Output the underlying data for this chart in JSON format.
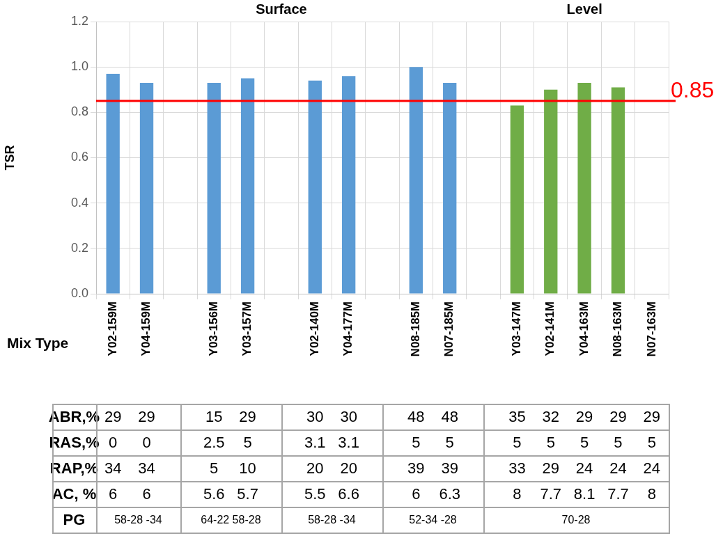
{
  "chart_data": {
    "type": "bar",
    "categories": [
      "Y02-159M",
      "Y04-159M",
      null,
      "Y03-156M",
      "Y03-157M",
      null,
      "Y02-140M",
      "Y04-177M",
      null,
      "N08-185M",
      "N07-185M",
      null,
      "Y03-147M",
      "Y02-141M",
      "Y04-163M",
      "N08-163M",
      "N07-163M"
    ],
    "values": [
      0.97,
      0.93,
      null,
      0.93,
      0.95,
      null,
      0.94,
      0.96,
      null,
      1.0,
      0.93,
      null,
      0.83,
      0.9,
      0.93,
      0.91,
      null
    ],
    "colors": [
      "#5b9bd5",
      "#5b9bd5",
      null,
      "#5b9bd5",
      "#5b9bd5",
      null,
      "#5b9bd5",
      "#5b9bd5",
      null,
      "#5b9bd5",
      "#5b9bd5",
      null,
      "#70ad47",
      "#70ad47",
      "#70ad47",
      "#70ad47",
      null
    ],
    "xlabel": "Mix Type",
    "ylabel": "TSR",
    "ylim": [
      0,
      1.2
    ],
    "yticks": [
      {
        "value": 0,
        "label": "0.0"
      },
      {
        "value": 0.2,
        "label": "0.2"
      },
      {
        "value": 0.4,
        "label": "0.4"
      },
      {
        "value": 0.6,
        "label": "0.6"
      },
      {
        "value": 0.8,
        "label": "0.8"
      },
      {
        "value": 1,
        "label": "1.0"
      },
      {
        "value": 1.2,
        "label": "1.2"
      }
    ],
    "grid": true,
    "legend": false,
    "ref_lines": [
      {
        "axis": "y",
        "value": 0.85,
        "label": "0.85",
        "color": "#ff0000"
      }
    ],
    "annotations": [
      "Surface",
      "Level",
      "ABR,%",
      "29",
      "29",
      "15",
      "29",
      "30",
      "30",
      "48",
      "48",
      "35",
      "32",
      "29",
      "29",
      "29",
      "RAS,%",
      "0",
      "0",
      "2.5",
      "5",
      "3.1",
      "3.1",
      "5",
      "5",
      "5",
      "5",
      "5",
      "5",
      "5",
      "RAP,%",
      "34",
      "34",
      "5",
      "10",
      "20",
      "20",
      "39",
      "39",
      "33",
      "29",
      "24",
      "24",
      "24",
      "AC, %",
      "6",
      "6",
      "5.6",
      "5.7",
      "5.5",
      "6.6",
      "6",
      "6.3",
      "8",
      "7.7",
      "8.1",
      "7.7",
      "8",
      "PG",
      "58-28 -34",
      "64-22 58-28",
      "58-28  -34",
      "52-34 -28",
      "70-28"
    ]
  }
}
